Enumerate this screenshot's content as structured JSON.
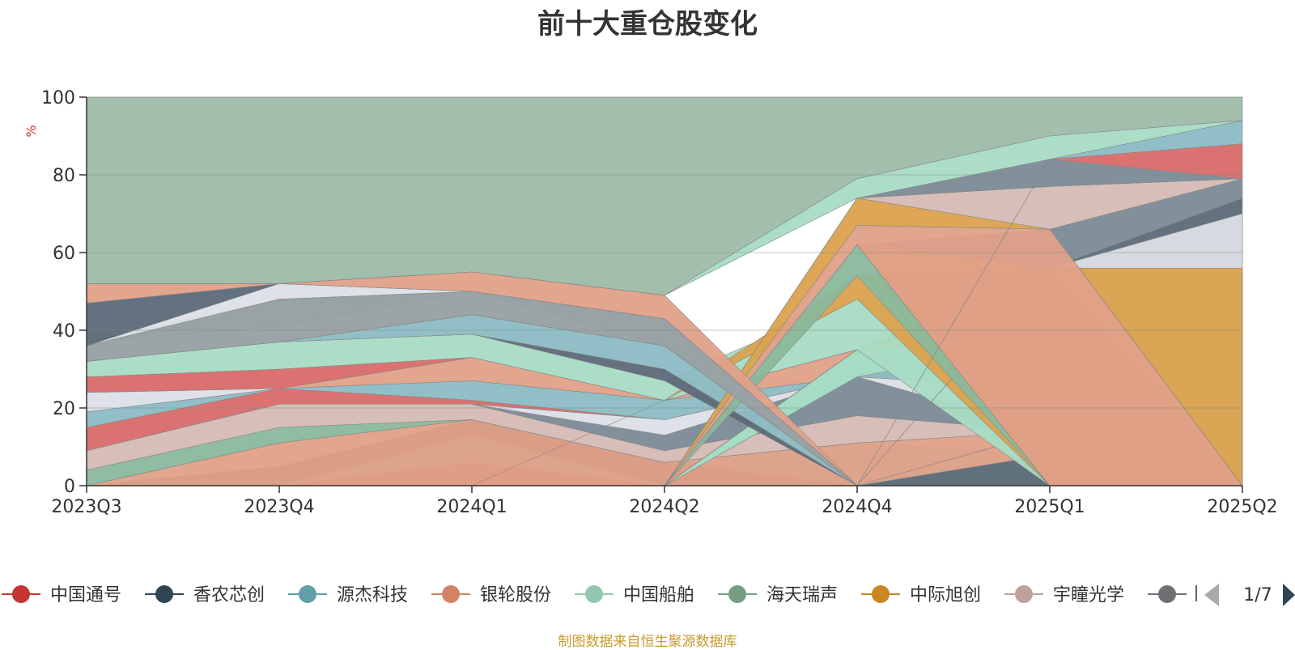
{
  "chart_data": {
    "type": "area",
    "title": "前十大重仓股变化",
    "ylabel": "%",
    "xlabel": "",
    "ylim": [
      0,
      100
    ],
    "yticks": [
      0,
      20,
      40,
      60,
      80,
      100
    ],
    "grid": true,
    "categories": [
      "2023Q3",
      "2023Q4",
      "2024Q1",
      "2024Q2",
      "2024Q4",
      "2025Q1",
      "2025Q2"
    ],
    "series": [
      {
        "color": "#d05a5a",
        "lower": [
          0,
          0,
          0,
          0,
          0,
          0,
          0
        ],
        "upper": [
          0,
          0,
          6,
          0,
          0,
          0,
          0
        ]
      },
      {
        "color": "#a8dcc4",
        "lower": [
          0,
          0,
          6,
          0,
          0,
          0,
          0
        ],
        "upper": [
          0,
          0,
          13,
          6,
          11,
          8,
          3
        ]
      },
      {
        "color": "#5c6a78",
        "lower": [
          0,
          0,
          13,
          0,
          0,
          0,
          0
        ],
        "upper": [
          0,
          5,
          17,
          6,
          0,
          8,
          0
        ]
      },
      {
        "color": "#e0a088",
        "lower": [
          0,
          0,
          0,
          0,
          0,
          8,
          0
        ],
        "upper": [
          0,
          11,
          17,
          6,
          11,
          14,
          0
        ]
      },
      {
        "color": "#8ab89c",
        "lower": [
          0,
          11,
          17,
          6,
          11,
          14,
          0
        ],
        "upper": [
          4,
          15,
          17,
          6,
          11,
          14,
          3
        ]
      },
      {
        "color": "#d6bab4",
        "lower": [
          4,
          15,
          17,
          6,
          11,
          14,
          3
        ],
        "upper": [
          9,
          21,
          21,
          9,
          18,
          14,
          3
        ]
      },
      {
        "color": "#7a8a96",
        "lower": [
          9,
          21,
          21,
          9,
          18,
          14,
          3
        ],
        "upper": [
          9,
          21,
          21,
          13,
          28,
          14,
          3
        ]
      },
      {
        "color": "#dcdfe6",
        "lower": [
          9,
          21,
          21,
          13,
          28,
          14,
          3
        ],
        "upper": [
          9,
          21,
          21,
          17,
          28,
          25,
          3
        ]
      },
      {
        "color": "#d86a6a",
        "lower": [
          9,
          21,
          21,
          17,
          28,
          25,
          3
        ],
        "upper": [
          15,
          25,
          22,
          17,
          28,
          25,
          3
        ]
      },
      {
        "color": "#8cbcc4",
        "lower": [
          15,
          25,
          22,
          17,
          28,
          25,
          3
        ],
        "upper": [
          19,
          25,
          27,
          22,
          28,
          25,
          3
        ]
      },
      {
        "color": "#e0a088",
        "lower": [
          19,
          25,
          27,
          22,
          28,
          25,
          3
        ],
        "upper": [
          19,
          25,
          33,
          22,
          35,
          25,
          3
        ]
      },
      {
        "color": "#dcdfe6",
        "lower": [
          19,
          25,
          33,
          22,
          35,
          25,
          3
        ],
        "upper": [
          24,
          25,
          33,
          22,
          35,
          25,
          3
        ]
      },
      {
        "color": "#d86a6a",
        "lower": [
          24,
          25,
          33,
          22,
          35,
          25,
          3
        ],
        "upper": [
          28,
          30,
          33,
          22,
          35,
          25,
          3
        ]
      },
      {
        "color": "#e8a47c",
        "lower": [
          0,
          0,
          0,
          0,
          0,
          14,
          3
        ],
        "upper": [
          0,
          0,
          0,
          0,
          0,
          14,
          25
        ]
      },
      {
        "color": "#9aa0a4",
        "lower": [
          0,
          0,
          0,
          0,
          0,
          14,
          25
        ],
        "upper": [
          0,
          0,
          0,
          0,
          0,
          14,
          36
        ]
      },
      {
        "color": "#dcdfe6",
        "lower": [
          0,
          0,
          0,
          0,
          28,
          14,
          36
        ],
        "upper": [
          0,
          0,
          0,
          0,
          28,
          25,
          46
        ]
      },
      {
        "color": "#8cbcc4",
        "lower": [
          0,
          0,
          0,
          0,
          28,
          25,
          0
        ],
        "upper": [
          0,
          0,
          0,
          0,
          35,
          37,
          46
        ]
      },
      {
        "color": "#a8dcc4",
        "lower": [
          0,
          0,
          0,
          0,
          28,
          37,
          46
        ],
        "upper": [
          0,
          0,
          0,
          0,
          35,
          37,
          46
        ]
      },
      {
        "color": "#e0a088",
        "lower": [
          0,
          0,
          0,
          0,
          35,
          37,
          46
        ],
        "upper": [
          0,
          0,
          0,
          0,
          35,
          37,
          46
        ]
      },
      {
        "color": "#dba24e",
        "lower": [
          0,
          0,
          0,
          0,
          35,
          37,
          46
        ],
        "upper": [
          0,
          0,
          0,
          0,
          35,
          48,
          56
        ]
      },
      {
        "color": "#9aa0a4",
        "lower": [
          0,
          0,
          0,
          0,
          35,
          48,
          56
        ],
        "upper": [
          0,
          0,
          0,
          0,
          35,
          56,
          56
        ]
      },
      {
        "color": "#a8dcc4",
        "lower": [
          28,
          30,
          33,
          22,
          35,
          0,
          0
        ],
        "upper": [
          32,
          37,
          39,
          27,
          48,
          56,
          56
        ]
      },
      {
        "color": "#dba24e",
        "lower": [
          0,
          0,
          0,
          22,
          48,
          0,
          0
        ],
        "upper": [
          0,
          0,
          0,
          22,
          54,
          56,
          56
        ]
      },
      {
        "color": "#5c6a78",
        "lower": [
          32,
          37,
          39,
          27,
          0,
          56,
          56
        ],
        "upper": [
          32,
          37,
          39,
          30,
          0,
          56,
          74
        ]
      },
      {
        "color": "#dcdfe6",
        "lower": [
          0,
          0,
          0,
          0,
          0,
          56,
          56
        ],
        "upper": [
          0,
          0,
          0,
          0,
          0,
          56,
          70
        ]
      },
      {
        "color": "#8cbcc4",
        "lower": [
          32,
          37,
          39,
          30,
          0,
          0,
          0
        ],
        "upper": [
          32,
          37,
          44,
          36,
          0,
          0,
          0
        ]
      },
      {
        "color": "#8ab89c",
        "lower": [
          0,
          0,
          0,
          0,
          54,
          0,
          0
        ],
        "upper": [
          0,
          0,
          0,
          0,
          62,
          0,
          0
        ]
      },
      {
        "color": "#dba24e",
        "lower": [
          0,
          0,
          0,
          0,
          62,
          0,
          0
        ],
        "upper": [
          0,
          0,
          0,
          0,
          62,
          56,
          0
        ]
      },
      {
        "color": "#7a8a96",
        "lower": [
          0,
          0,
          0,
          0,
          62,
          56,
          74
        ],
        "upper": [
          0,
          0,
          0,
          0,
          62,
          66,
          79
        ]
      },
      {
        "color": "#a8dcc4",
        "lower": [
          32,
          37,
          44,
          36,
          0,
          0,
          0
        ],
        "upper": [
          37,
          41,
          50,
          36,
          0,
          0,
          0
        ]
      },
      {
        "color": "#e0a088",
        "lower": [
          0,
          0,
          0,
          0,
          62,
          0,
          0
        ],
        "upper": [
          0,
          0,
          0,
          0,
          67,
          66,
          0
        ]
      },
      {
        "color": "#dba24e",
        "lower": [
          0,
          0,
          0,
          0,
          67,
          66,
          0
        ],
        "upper": [
          0,
          0,
          0,
          0,
          74,
          66,
          0
        ]
      },
      {
        "color": "#d6bab4",
        "lower": [
          0,
          0,
          0,
          0,
          74,
          66,
          79
        ],
        "upper": [
          0,
          0,
          0,
          0,
          74,
          77,
          79
        ]
      },
      {
        "color": "#8ab89c",
        "lower": [
          37,
          41,
          50,
          36,
          0,
          0,
          0
        ],
        "upper": [
          37,
          48,
          50,
          43,
          0,
          0,
          0
        ]
      },
      {
        "color": "#7a8a96",
        "lower": [
          0,
          0,
          0,
          0,
          74,
          77,
          79
        ],
        "upper": [
          0,
          0,
          0,
          0,
          74,
          84,
          79
        ]
      },
      {
        "color": "#d86a6a",
        "lower": [
          0,
          0,
          0,
          0,
          0,
          84,
          79
        ],
        "upper": [
          0,
          0,
          0,
          0,
          0,
          84,
          88
        ]
      },
      {
        "color": "#8cbcc4",
        "lower": [
          0,
          0,
          0,
          0,
          0,
          84,
          88
        ],
        "upper": [
          0,
          0,
          0,
          0,
          0,
          84,
          94
        ]
      },
      {
        "color": "#9aa0a4",
        "lower": [
          32,
          37,
          44,
          36,
          0,
          0,
          0
        ],
        "upper": [
          36,
          48,
          50,
          43,
          0,
          0,
          0
        ]
      },
      {
        "color": "#dcdfe6",
        "lower": [
          36,
          48,
          50,
          43,
          0,
          0,
          0
        ],
        "upper": [
          36,
          52,
          50,
          43,
          0,
          0,
          0
        ]
      },
      {
        "color": "#5c6a78",
        "lower": [
          36,
          52,
          50,
          43,
          0,
          0,
          0
        ],
        "upper": [
          47,
          52,
          50,
          43,
          0,
          0,
          0
        ]
      },
      {
        "color": "#e0a088",
        "lower": [
          47,
          52,
          50,
          43,
          0,
          0,
          0
        ],
        "upper": [
          52,
          52,
          55,
          49,
          0,
          0,
          0
        ]
      },
      {
        "color": "#a8dcc4",
        "lower": [
          52,
          52,
          55,
          49,
          74,
          84,
          94
        ],
        "upper": [
          52,
          52,
          55,
          49,
          79,
          90,
          94
        ]
      },
      {
        "color": "#9dbaa8",
        "lower": [
          52,
          52,
          55,
          49,
          79,
          90,
          94
        ],
        "upper": [
          100,
          100,
          100,
          100,
          100,
          100,
          100
        ]
      }
    ],
    "legend": {
      "position": "bottom",
      "page": "1/7",
      "items": [
        {
          "name": "中国通号",
          "color": "#c23531"
        },
        {
          "name": "香农芯创",
          "color": "#2f4554"
        },
        {
          "name": "源杰科技",
          "color": "#61a0a8"
        },
        {
          "name": "银轮股份",
          "color": "#d48265"
        },
        {
          "name": "中国船舶",
          "color": "#91c7ae"
        },
        {
          "name": "海天瑞声",
          "color": "#749f83"
        },
        {
          "name": "中际旭创",
          "color": "#ca8622"
        },
        {
          "name": "宇瞳光学",
          "color": "#bda29a"
        },
        {
          "name": "",
          "color": "#6e7074"
        }
      ]
    }
  },
  "source_note": "制图数据来自恒生聚源数据库"
}
